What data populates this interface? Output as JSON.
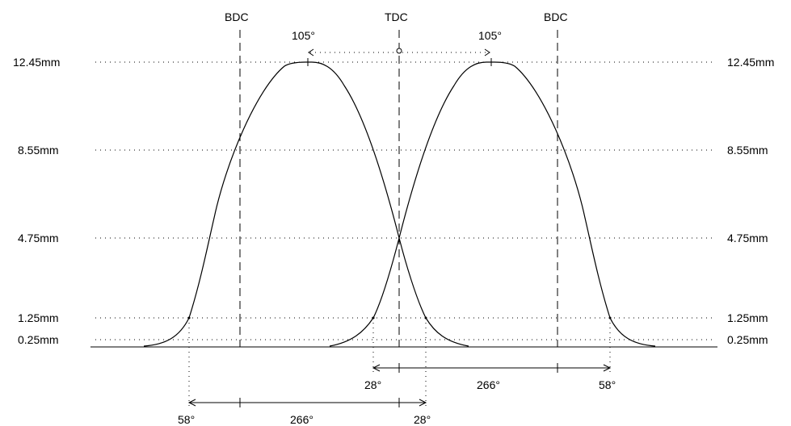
{
  "diagram": {
    "lift_levels": [
      {
        "key": "max",
        "text": "12.45mm",
        "value": 12.45
      },
      {
        "key": "l855",
        "text": "8.55mm",
        "value": 8.55
      },
      {
        "key": "l475",
        "text": "4.75mm",
        "value": 4.75
      },
      {
        "key": "l125",
        "text": "1.25mm",
        "value": 1.25
      },
      {
        "key": "l025",
        "text": "0.25mm",
        "value": 0.25
      }
    ],
    "markers": {
      "bdc_left": "BDC",
      "tdc": "TDC",
      "bdc_right": "BDC"
    },
    "lobe_centers": {
      "left": "105°",
      "right": "105°"
    },
    "exhaust_duration": {
      "open": "58°",
      "duration": "266°",
      "close": "28°"
    },
    "intake_duration": {
      "open": "28°",
      "duration": "266°",
      "close": "58°"
    }
  }
}
